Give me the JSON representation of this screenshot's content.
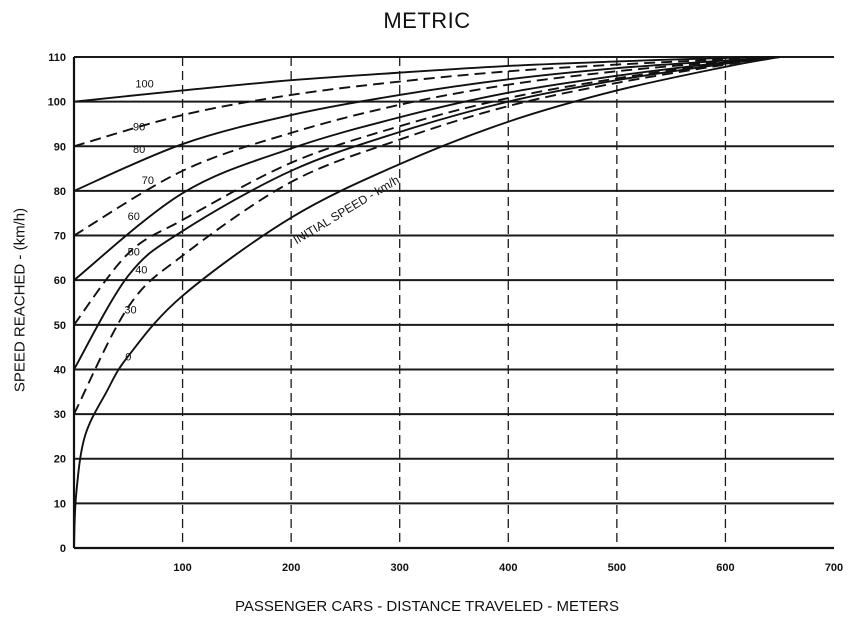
{
  "chart_data": {
    "type": "line",
    "title": "METRIC",
    "xlabel": "PASSENGER CARS - DISTANCE TRAVELED - METERS",
    "ylabel": "SPEED REACHED - (km/h)",
    "xlim": [
      0,
      700
    ],
    "ylim": [
      0,
      110
    ],
    "x_ticks": [
      "100",
      "200",
      "300",
      "400",
      "500",
      "600",
      "700"
    ],
    "y_ticks": [
      "0",
      "10",
      "20",
      "30",
      "40",
      "50",
      "60",
      "70",
      "80",
      "90",
      "100",
      "110"
    ],
    "grid": true,
    "legend": "none",
    "annotation": "INITIAL SPEED - km/h",
    "series": [
      {
        "name": "100",
        "style": "solid",
        "x": [
          0,
          100,
          200,
          300,
          400,
          500,
          600,
          650
        ],
        "y": [
          100,
          102.5,
          104.8,
          106.5,
          108,
          109,
          109.8,
          110
        ]
      },
      {
        "name": "90",
        "style": "dashed",
        "x": [
          0,
          100,
          200,
          300,
          400,
          500,
          600,
          650
        ],
        "y": [
          90,
          97,
          101.5,
          104.5,
          106.8,
          108.3,
          109.5,
          110
        ]
      },
      {
        "name": "80",
        "style": "solid",
        "x": [
          0,
          100,
          200,
          300,
          400,
          500,
          600,
          650
        ],
        "y": [
          80,
          90.5,
          97,
          101.5,
          105,
          107.5,
          109.2,
          110
        ]
      },
      {
        "name": "70",
        "style": "dashed",
        "x": [
          0,
          100,
          200,
          300,
          400,
          500,
          600,
          650
        ],
        "y": [
          70,
          84.5,
          93,
          99.3,
          103.8,
          106.8,
          109,
          110
        ]
      },
      {
        "name": "60",
        "style": "solid",
        "x": [
          0,
          100,
          200,
          300,
          400,
          500,
          600,
          650
        ],
        "y": [
          60,
          79.5,
          89.5,
          96.5,
          102,
          105.8,
          108.8,
          110
        ]
      },
      {
        "name": "50",
        "style": "dashed",
        "x": [
          0,
          50,
          100,
          200,
          300,
          400,
          500,
          600,
          650
        ],
        "y": [
          50,
          66,
          73.5,
          86.3,
          94.5,
          100.8,
          105.2,
          108.7,
          110
        ]
      },
      {
        "name": "40",
        "style": "solid",
        "x": [
          0,
          50,
          100,
          200,
          300,
          400,
          500,
          600,
          650
        ],
        "y": [
          40,
          61,
          71,
          84.5,
          93.2,
          100,
          104.8,
          108.5,
          110
        ]
      },
      {
        "name": "30",
        "style": "dashed",
        "x": [
          0,
          50,
          100,
          200,
          300,
          400,
          500,
          600,
          650
        ],
        "y": [
          30,
          54,
          65.5,
          82,
          91.5,
          99,
          104.2,
          108.3,
          110
        ]
      },
      {
        "name": "0",
        "style": "solid",
        "x": [
          0,
          2,
          10,
          30,
          50,
          100,
          200,
          300,
          400,
          500,
          600,
          650
        ],
        "y": [
          0,
          12,
          25,
          35,
          43,
          56.5,
          74,
          86,
          95.5,
          102.5,
          107.8,
          110
        ]
      }
    ],
    "curve_label_positions": [
      {
        "series": "100",
        "x": 65,
        "y": 103.2
      },
      {
        "series": "90",
        "x": 60,
        "y": 93.5
      },
      {
        "series": "80",
        "x": 60,
        "y": 88.5
      },
      {
        "series": "70",
        "x": 68,
        "y": 81.5
      },
      {
        "series": "60",
        "x": 55,
        "y": 73.5
      },
      {
        "series": "50",
        "x": 55,
        "y": 65.5
      },
      {
        "series": "40",
        "x": 62,
        "y": 61.5
      },
      {
        "series": "30",
        "x": 52,
        "y": 52.5
      },
      {
        "series": "0",
        "x": 50,
        "y": 42
      }
    ],
    "annotation_position": {
      "x": 205,
      "y": 68
    }
  }
}
